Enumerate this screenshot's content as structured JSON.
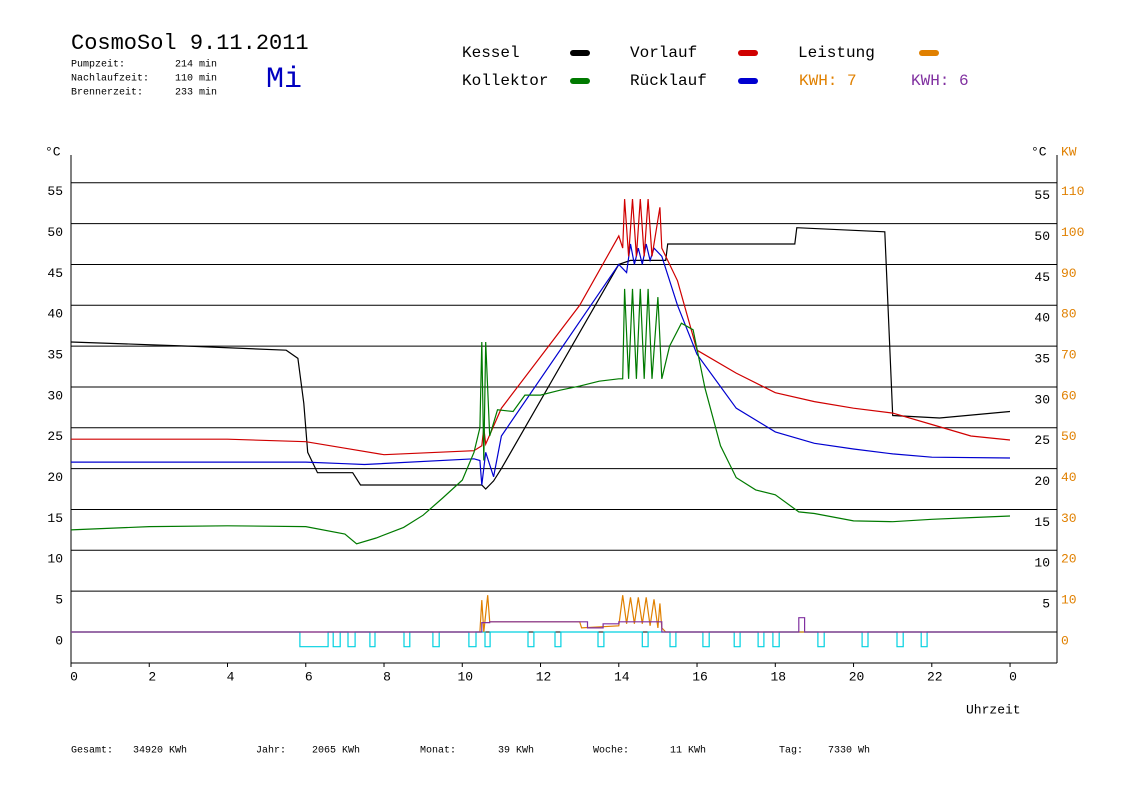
{
  "header": {
    "title": "CosmoSol 9.11.2011",
    "day": "Mi",
    "stats": [
      {
        "label": "Pumpzeit:",
        "value": "214 min"
      },
      {
        "label": "Nachlaufzeit:",
        "value": "110 min"
      },
      {
        "label": "Brennerzeit:",
        "value": "233 min"
      }
    ]
  },
  "chart_data": {
    "type": "line",
    "x_label": "Uhrzeit",
    "y_label": "°C",
    "y2_label": "KW",
    "xlim": [
      0,
      25.2
    ],
    "xticks": [
      0,
      2,
      4,
      6,
      8,
      10,
      12,
      14,
      16,
      18,
      20,
      22,
      {
        "value": 24,
        "label": "0"
      }
    ],
    "ylim": [
      -3.8,
      58.4
    ],
    "yticks": [
      0,
      5,
      10,
      15,
      20,
      25,
      30,
      35,
      40,
      45,
      50,
      55
    ],
    "y2lim": [
      -7.6,
      116.8
    ],
    "y2ticks": [
      0,
      10,
      20,
      30,
      40,
      50,
      60,
      70,
      80,
      90,
      100,
      110
    ],
    "y2_color": "#e08000",
    "grid": true,
    "energy_labels": [
      {
        "text": "KWH: 7",
        "color": "#e08000"
      },
      {
        "text": "KWH: 6",
        "color": "#8030a0"
      }
    ],
    "series": [
      {
        "name": "Kessel",
        "color": "#000000",
        "x": [
          0,
          3,
          5.5,
          5.8,
          5.95,
          6.05,
          6.3,
          7.2,
          7.4,
          10.5,
          10.6,
          10.8,
          11.0,
          14.0,
          14.3,
          15.2,
          15.25,
          18.5,
          18.55,
          20.8,
          21.0,
          22.2,
          24
        ],
        "values": [
          35.5,
          35,
          34.5,
          33.5,
          28,
          22,
          19.5,
          19.5,
          18,
          18,
          17.5,
          18.5,
          20,
          45,
          45.5,
          45.5,
          47.5,
          47.5,
          49.5,
          49,
          26.5,
          26.2,
          27
        ]
      },
      {
        "name": "Kollektor",
        "color": "#007a00",
        "x": [
          0,
          2,
          4,
          6,
          7,
          7.3,
          7.8,
          8.5,
          9,
          9.5,
          10,
          10.3,
          10.45,
          10.5,
          10.55,
          10.6,
          10.7,
          10.9,
          11.3,
          11.6,
          12,
          12.5,
          13,
          13.5,
          14,
          14.1,
          14.15,
          14.25,
          14.35,
          14.45,
          14.55,
          14.65,
          14.75,
          14.85,
          15.0,
          15.1,
          15.3,
          15.6,
          15.9,
          16.2,
          16.6,
          17,
          17.5,
          18,
          18.6,
          19,
          20,
          21,
          22,
          23,
          24
        ],
        "values": [
          12.5,
          12.9,
          13,
          12.9,
          12,
          10.8,
          11.5,
          12.8,
          14.3,
          16.4,
          18.6,
          22,
          25,
          35.5,
          21,
          35.5,
          24,
          27.2,
          27,
          29,
          29,
          29.6,
          30.1,
          30.7,
          31,
          31,
          42,
          31,
          42,
          31,
          42,
          31,
          42,
          31,
          41,
          31,
          35,
          37.8,
          37,
          29.9,
          22.8,
          18.9,
          17.4,
          16.8,
          14.7,
          14.5,
          13.6,
          13.5,
          13.8,
          14,
          14.2
        ]
      },
      {
        "name": "Vorlauf",
        "color": "#d00000",
        "x": [
          0,
          4,
          6,
          7,
          8,
          10.3,
          10.5,
          10.55,
          10.6,
          11.0,
          13.0,
          14.0,
          14.1,
          14.15,
          14.25,
          14.35,
          14.45,
          14.55,
          14.65,
          14.75,
          14.85,
          15.05,
          15.1,
          15.5,
          16,
          17,
          18,
          19,
          20,
          21,
          22,
          23,
          24
        ],
        "values": [
          23.6,
          23.6,
          23.3,
          22.5,
          21.7,
          22.2,
          22.8,
          25,
          23,
          27.4,
          40,
          48.5,
          47,
          53,
          46,
          53,
          46,
          53,
          46,
          53,
          46,
          52,
          47,
          43,
          34.5,
          31.7,
          29.3,
          28.2,
          27.4,
          26.8,
          25.4,
          24,
          23.5
        ]
      },
      {
        "name": "Rücklauf",
        "color": "#0000d0",
        "x": [
          0,
          6,
          7,
          7.5,
          10.3,
          10.45,
          10.5,
          10.6,
          10.8,
          11.0,
          14.0,
          14.2,
          14.3,
          14.4,
          14.5,
          14.6,
          14.7,
          14.8,
          14.9,
          15.1,
          15.5,
          16,
          17,
          18,
          19,
          20,
          21,
          22,
          24
        ],
        "values": [
          20.8,
          20.8,
          20.6,
          20.5,
          21.2,
          21,
          18,
          22,
          19,
          24,
          45,
          44,
          47.5,
          45,
          47,
          45,
          47.5,
          45.5,
          47,
          46,
          40,
          34,
          27.4,
          24.5,
          23.1,
          22.4,
          21.8,
          21.4,
          21.3
        ]
      },
      {
        "name": "Leistung",
        "color": "#e08000",
        "axis": "y2",
        "x": [
          0,
          10.45,
          10.5,
          10.55,
          10.65,
          10.7,
          13.0,
          13.05,
          14.0,
          14.1,
          14.2,
          14.3,
          14.4,
          14.5,
          14.6,
          14.7,
          14.8,
          14.9,
          15.0,
          15.05,
          15.1,
          15.2,
          24
        ],
        "values": [
          0,
          0,
          7.8,
          0,
          9,
          2.5,
          2.5,
          1,
          1.5,
          9,
          2,
          8.5,
          2,
          8.5,
          2,
          8.5,
          1.5,
          8,
          1,
          7,
          1,
          0,
          0
        ]
      },
      {
        "color": "#8030a0",
        "axis": "y2",
        "x": [
          0,
          10.5,
          10.5,
          10.7,
          10.7,
          13.2,
          13.2,
          13.6,
          13.6,
          14.0,
          14.0,
          15.1,
          15.1,
          18.6,
          18.6,
          18.75,
          18.75,
          24
        ],
        "values": [
          0,
          0,
          2.3,
          2.3,
          2.5,
          2.5,
          1,
          1,
          2,
          2,
          2.5,
          2.5,
          0,
          0,
          3.5,
          3.5,
          0,
          0
        ]
      },
      {
        "color": "#00d0e0",
        "x": [
          0,
          5.85,
          5.85,
          6.57,
          6.57,
          6.7,
          6.7,
          6.88,
          6.88,
          7.08,
          7.08,
          7.26,
          7.26,
          7.64,
          7.64,
          7.77,
          7.77,
          8.51,
          8.51,
          8.66,
          8.66,
          9.25,
          9.25,
          9.41,
          9.41,
          10.17,
          10.17,
          10.35,
          10.35,
          10.58,
          10.58,
          10.71,
          10.71,
          11.68,
          11.68,
          11.83,
          11.83,
          12.37,
          12.37,
          12.52,
          12.52,
          13.47,
          13.47,
          13.62,
          13.62,
          14.6,
          14.6,
          14.75,
          14.75,
          15.31,
          15.31,
          15.46,
          15.46,
          16.15,
          16.15,
          16.31,
          16.31,
          16.95,
          16.95,
          17.1,
          17.1,
          17.56,
          17.56,
          17.71,
          17.71,
          17.94,
          17.94,
          18.1,
          18.1,
          19.09,
          19.09,
          19.25,
          19.25,
          20.22,
          20.22,
          20.37,
          20.37,
          21.11,
          21.11,
          21.27,
          21.27,
          21.73,
          21.73,
          21.88,
          21.88,
          24
        ],
        "values": [
          0,
          0,
          -1.8,
          -1.8,
          0,
          0,
          -1.8,
          -1.8,
          0,
          0,
          -1.8,
          -1.8,
          0,
          0,
          -1.8,
          -1.8,
          0,
          0,
          -1.8,
          -1.8,
          0,
          0,
          -1.8,
          -1.8,
          0,
          0,
          -1.8,
          -1.8,
          0,
          0,
          -1.8,
          -1.8,
          0,
          0,
          -1.8,
          -1.8,
          0,
          0,
          -1.8,
          -1.8,
          0,
          0,
          -1.8,
          -1.8,
          0,
          0,
          -1.8,
          -1.8,
          0,
          0,
          -1.8,
          -1.8,
          0,
          0,
          -1.8,
          -1.8,
          0,
          0,
          -1.8,
          -1.8,
          0,
          0,
          -1.8,
          -1.8,
          0,
          0,
          -1.8,
          -1.8,
          0,
          0,
          -1.8,
          -1.8,
          0,
          0,
          -1.8,
          -1.8,
          0,
          0,
          -1.8,
          -1.8,
          0,
          0,
          -1.8,
          -1.8,
          0,
          0
        ]
      }
    ]
  },
  "footer": [
    {
      "label": "Gesamt:",
      "value": "34920 KWh"
    },
    {
      "label": "Jahr:",
      "value": "2065 KWh"
    },
    {
      "label": "Monat:",
      "value": "39 KWh"
    },
    {
      "label": "Woche:",
      "value": "11 KWh"
    },
    {
      "label": "Tag:",
      "value": "7330 Wh"
    }
  ]
}
